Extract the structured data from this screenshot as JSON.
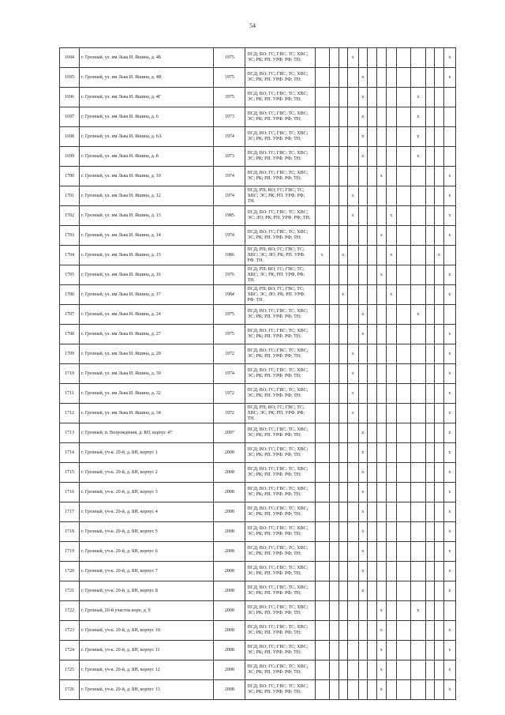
{
  "page": {
    "number": "54"
  },
  "table": {
    "mark_symbol": "х",
    "mark_columns": 13,
    "rows": [
      {
        "num": "1694",
        "address": "г. Грозный, ул. им Льва И. Яшина, д. 4Б",
        "year": "1975",
        "codes": "ПСД; ВО; ГС; ГВС; ТС; ХВС; ЭС; РК; РП. УРФ. РФ; ТН;",
        "marks": [
          4,
          13
        ]
      },
      {
        "num": "1695",
        "address": "г. Грозный, ул. им Льва И. Яшина, д. 4В",
        "year": "1975",
        "codes": "ПСД; ВО; ГС; ГВС; ТС; ХВС; ЭС; РК; РП. УРФ. РФ; ТН;",
        "marks": [
          5,
          13
        ]
      },
      {
        "num": "1696",
        "address": "г. Грозный, ул. им Льва И. Яшина, д. 4Г",
        "year": "1975",
        "codes": "ПСД; ВО; ГС; ГВС; ТС; ХВС; ЭС; РК; РП. УРФ. РФ; ТН;",
        "marks": [
          5,
          10
        ]
      },
      {
        "num": "1697",
        "address": "г. Грозный, ул. им Льва И. Яшина, д. 6",
        "year": "1973",
        "codes": "ПСД; ВО; ГС; ГВС; ТС; ХВС; ЭС; РК; РП. УРФ. РФ; ТН;",
        "marks": [
          5,
          10
        ]
      },
      {
        "num": "1698",
        "address": "г. Грозный, ул. им Льва И. Яшина, д. 6А",
        "year": "1974",
        "codes": "ПСД; ВО; ГС; ГВС; ТС; ХВС; ЭС; РК; РП. УРФ. РФ; ТН;",
        "marks": [
          5,
          10
        ]
      },
      {
        "num": "1699",
        "address": "г. Грозный, ул. им Льва И. Яшина, д. 8",
        "year": "1973",
        "codes": "ПСД; ВО; ГС; ГВС; ТС; ХВС; ЭС; РК; РП. УРФ. РФ; ТН;",
        "marks": [
          5,
          10
        ]
      },
      {
        "num": "1700",
        "address": "г. Грозный, ул. им Льва И. Яшина, д. 10",
        "year": "1974",
        "codes": "ПСД; ВО; ГС; ГВС; ТС; ХВС; ЭС; РК; РП. УРФ. РФ; ТН;",
        "marks": [
          7,
          13
        ]
      },
      {
        "num": "1701",
        "address": "г. Грозный, ул. им Льва И. Яшина, д. 12",
        "year": "1974",
        "codes": "ПСД; РП; ВО; ГС; ГВС; ТС; ХВС; ЭС; РК; РП. УРФ. РФ; ТН.",
        "marks": [
          4,
          13
        ]
      },
      {
        "num": "1702",
        "address": "г. Грозный, ул. им Льва И. Яшина, д. 13",
        "year": "1985",
        "codes": "ПСД; ВО; ГС; ГВС; ТС; ХВС; ЭС; ЛО; РК; РП. УРФ. РФ; ТН;",
        "marks": [
          4,
          8,
          13
        ]
      },
      {
        "num": "1703",
        "address": "г. Грозный, ул. им Льва И. Яшина, д. 14",
        "year": "1974",
        "codes": "ПСД; ВО; ГС; ГВС; ТС; ХВС; ЭС; РК; РП. УРФ. РФ; ТН;",
        "marks": [
          7,
          13
        ]
      },
      {
        "num": "1704",
        "address": "г. Грозный, ул. им Льва И. Яшина, д. 15",
        "year": "1986",
        "codes": "ПСД; РП; ВО; ГС; ГВС; ТС; ХВС; ЭС; ЛО; РК; РП. УРФ. РФ. ТН.",
        "marks": [
          1,
          3,
          8,
          12
        ]
      },
      {
        "num": "1705",
        "address": "г. Грозный, ул. им Льва И. Яшина, д. 16",
        "year": "1976",
        "codes": "ПСД; РП; ВО; ГС; ГВС; ТС; ХВС; ЭС; РК; РП. УРФ. РФ; ТН.",
        "marks": [
          7,
          13
        ]
      },
      {
        "num": "1706",
        "address": "г. Грозный, ул. им Льва И. Яшина, д. 17",
        "year": "1984",
        "codes": "ПСД; РП; ВО; ГС; ГВС; ТС; ХВС; ЭС; ЛО; РК; РП. УРФ. РФ. ТН.",
        "marks": [
          3,
          8,
          13
        ]
      },
      {
        "num": "1707",
        "address": "г. Грозный, ул. им Льва И. Яшина, д. 24",
        "year": "1975",
        "codes": "ПСД; ВО; ГС; ГВС; ТС; ХВС; ЭС; РК; РП. УРФ. РФ; ТН;",
        "marks": [
          5,
          10
        ]
      },
      {
        "num": "1708",
        "address": "г. Грозный, ул. им Льва И. Яшина, д. 27",
        "year": "1975",
        "codes": "ПСД; ВО; ГС; ГВС; ТС; ХВС; ЭС; РК; РП. УРФ. РФ; ТН;",
        "marks": [
          5,
          13
        ]
      },
      {
        "num": "1709",
        "address": "г. Грозный, ул. им Льва И. Яшина, д. 28",
        "year": "1972",
        "codes": "ПСД; ВО; ГС; ГВС; ТС; ХВС; ЭС; РК; РП. УРФ. РФ; ТН;",
        "marks": [
          4,
          13
        ]
      },
      {
        "num": "1710",
        "address": "г. Грозный, ул. им Льва И. Яшина, д. 30",
        "year": "1974",
        "codes": "ПСД; ВО; ГС; ГВС; ТС; ХВС; ЭС; РК; РП. УРФ. РФ; ТН;",
        "marks": [
          4,
          13
        ]
      },
      {
        "num": "1711",
        "address": "г. Грозный, ул. им Льва И. Яшина, д. 32",
        "year": "1972",
        "codes": "ПСД; ВО; ГС; ГВС; ТС; ХВС; ЭС; РК; РП. УРФ. РФ; ТН;",
        "marks": [
          4,
          13
        ]
      },
      {
        "num": "1712",
        "address": "г. Грозный, ул. им Льва И. Яшина, д. 34",
        "year": "1972",
        "codes": "ПСД; РП; ВО; ГС; ГВС; ТС; ХВС; ЭС; РК; РП. УРФ. РФ; ТН.",
        "marks": [
          4,
          13
        ]
      },
      {
        "num": "1713",
        "address": "г. Грозный, п. Возрождения, д. БН, корпус 47",
        "year": "2007",
        "codes": "ПСД; ВО; ГС; ГВС; ТС; ХВС; ЭС; РК; РП. УРФ. РФ; ТН;",
        "marks": [
          5,
          13
        ]
      },
      {
        "num": "1714",
        "address": "г. Грозный, уч-к. 20-й, д. БН, корпус 1",
        "year": "2008",
        "codes": "ПСД; ВО; ГС; ГВС; ТС; ХВС; ЭС; РК; РП. УРФ. РФ; ТН;",
        "marks": [
          5,
          13
        ]
      },
      {
        "num": "1715",
        "address": "г. Грозный, уч-к. 20-й, д. БН, корпус 2",
        "year": "2008",
        "codes": "ПСД; ВО; ГС; ГВС; ТС; ХВС; ЭС; РК; РП. УРФ. РФ; ТН;",
        "marks": [
          5,
          13
        ]
      },
      {
        "num": "1716",
        "address": "г. Грозный, уч-к. 20-й, д. БН, корпус 3",
        "year": "2008",
        "codes": "ПСД; ВО; ГС; ГВС; ТС; ХВС; ЭС; РК; РП. УРФ. РФ; ТН;",
        "marks": [
          5,
          13
        ]
      },
      {
        "num": "1717",
        "address": "г. Грозный, уч-к. 20-й, д. БН, корпус 4",
        "year": "2008",
        "codes": "ПСД; ВО; ГС; ГВС; ТС; ХВС; ЭС; РК; РП. УРФ. РФ; ТН;",
        "marks": [
          5,
          13
        ]
      },
      {
        "num": "1718",
        "address": "г. Грозный, уч-к. 20-й, д. БН, корпус 5",
        "year": "2008",
        "codes": "ПСД; ВО; ГС; ГВС; ТС; ХВС; ЭС; РК; РП. УРФ. РФ; ТН;",
        "marks": [
          5,
          13
        ]
      },
      {
        "num": "1719",
        "address": "г. Грозный, уч-к. 20-й, д. БН, корпус 6",
        "year": "2008",
        "codes": "ПСД; ВО; ГС; ГВС; ТС; ХВС; ЭС; РК; РП. УРФ. РФ; ТН;",
        "marks": [
          5,
          13
        ]
      },
      {
        "num": "1720",
        "address": "г. Грозный, уч-к. 20-й, д. БН, корпус 7",
        "year": "2008",
        "codes": "ПСД; ВО; ГС; ГВС; ТС; ХВС; ЭС; РК; РП. УРФ. РФ; ТН;",
        "marks": [
          5,
          13
        ]
      },
      {
        "num": "1721",
        "address": "г. Грозный, уч-к. 20-й, д. БН, корпус 8",
        "year": "2008",
        "codes": "ПСД; ВО; ГС; ГВС; ТС; ХВС; ЭС; РК; РП. УРФ. РФ; ТН;",
        "marks": [
          5,
          13
        ]
      },
      {
        "num": "1722",
        "address": "г. Грозный, 20-й участок корп, д. 9",
        "year": "2008",
        "codes": "ПСД; ВО; ГС; ГВС; ТС; ХВС; ЭС; РК; РП. УРФ. РФ; ТН;",
        "marks": [
          7,
          10
        ]
      },
      {
        "num": "1723",
        "address": "г. Грозный, уч-к. 20-й, д. БН, корпус 10",
        "year": "2008",
        "codes": "ПСД; ВО; ГС; ГВС; ТС; ХВС; ЭС; РК; РП. УРФ. РФ; ТН;",
        "marks": [
          7,
          13
        ]
      },
      {
        "num": "1724",
        "address": "г. Грозный, уч-к. 20-й, д. БН, корпус 11",
        "year": "2008",
        "codes": "ПСД; ВО; ГС; ГВС; ТС; ХВС; ЭС; РК; РП. УРФ. РФ; ТН;",
        "marks": [
          7,
          13
        ]
      },
      {
        "num": "1725",
        "address": "г. Грозный, уч-к. 20-й, д. БН, корпус 12",
        "year": "2008",
        "codes": "ПСД; ВО; ГС; ГВС; ТС; ХВС; ЭС; РК; РП. УРФ. РФ; ТН;",
        "marks": [
          7,
          13
        ]
      },
      {
        "num": "1726",
        "address": "г. Грозный, уч-к. 20-й, д. БН, корпус 13",
        "year": "2008",
        "codes": "ПСД; ВО; ГС; ГВС; ТС; ХВС; ЭС; РК; РП. УРФ. РФ; ТН;",
        "marks": [
          7,
          13
        ]
      }
    ]
  }
}
